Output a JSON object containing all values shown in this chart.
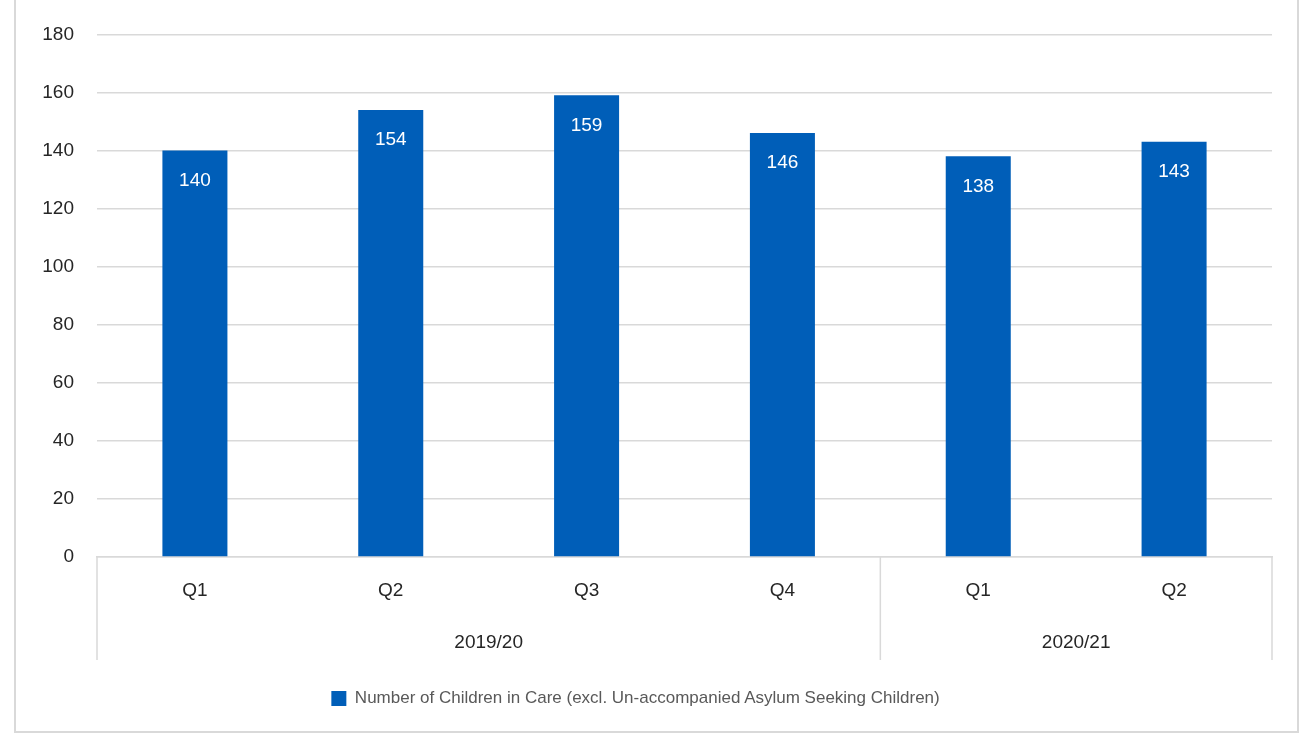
{
  "chart_data": {
    "type": "bar",
    "categories": [
      "Q1",
      "Q2",
      "Q3",
      "Q4",
      "Q1",
      "Q2"
    ],
    "series": [
      {
        "name": "Number of Children in Care (excl. Un-accompanied Asylum Seeking Children)",
        "color": "#005eb8",
        "values": [
          140,
          154,
          159,
          146,
          138,
          143
        ]
      }
    ],
    "ylim": [
      0,
      180
    ],
    "yticks": [
      0,
      20,
      40,
      60,
      80,
      100,
      120,
      140,
      160,
      180
    ],
    "grid": "y",
    "data_labels": true,
    "legend": "bottom",
    "annotations": [
      "2019/20",
      "2020/21"
    ]
  }
}
